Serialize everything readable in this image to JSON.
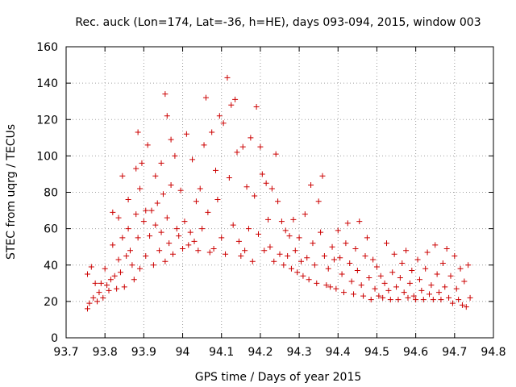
{
  "chart_data": {
    "type": "scatter",
    "title": "Rec. auck (Lon=174, Lat=-36, h=HE), days 093-094, 2015, window 003",
    "xlabel": "GPS time / Days of year 2015",
    "ylabel": "STEC from uqrg / TECUs",
    "xlim": [
      93.7,
      94.8
    ],
    "ylim": [
      0,
      160
    ],
    "xticks": [
      "93.7",
      "93.8",
      "93.9",
      "94",
      "94.1",
      "94.2",
      "94.3",
      "94.4",
      "94.5",
      "94.6",
      "94.7",
      "94.8"
    ],
    "yticks": [
      "0",
      "20",
      "40",
      "60",
      "80",
      "100",
      "120",
      "140",
      "160"
    ],
    "grid": true,
    "marker": "+",
    "color": "#cc0000",
    "series": [
      {
        "points": [
          [
            93.755,
            16
          ],
          [
            93.755,
            35
          ],
          [
            93.76,
            19
          ],
          [
            93.765,
            39
          ],
          [
            93.77,
            22
          ],
          [
            93.775,
            30
          ],
          [
            93.78,
            20
          ],
          [
            93.785,
            25
          ],
          [
            93.79,
            30
          ],
          [
            93.795,
            22
          ],
          [
            93.8,
            38
          ],
          [
            93.805,
            29
          ],
          [
            93.81,
            26
          ],
          [
            93.815,
            32
          ],
          [
            93.82,
            51
          ],
          [
            93.82,
            69
          ],
          [
            93.825,
            34
          ],
          [
            93.83,
            27
          ],
          [
            93.835,
            66
          ],
          [
            93.835,
            43
          ],
          [
            93.84,
            36
          ],
          [
            93.845,
            55
          ],
          [
            93.845,
            89
          ],
          [
            93.85,
            28
          ],
          [
            93.855,
            45
          ],
          [
            93.86,
            76
          ],
          [
            93.86,
            60
          ],
          [
            93.865,
            48
          ],
          [
            93.87,
            40
          ],
          [
            93.875,
            32
          ],
          [
            93.88,
            68
          ],
          [
            93.88,
            93
          ],
          [
            93.885,
            113
          ],
          [
            93.885,
            55
          ],
          [
            93.89,
            82
          ],
          [
            93.89,
            38
          ],
          [
            93.895,
            96
          ],
          [
            93.9,
            64
          ],
          [
            93.905,
            70
          ],
          [
            93.905,
            45
          ],
          [
            93.91,
            106
          ],
          [
            93.915,
            56
          ],
          [
            93.92,
            70
          ],
          [
            93.925,
            40
          ],
          [
            93.93,
            89
          ],
          [
            93.93,
            62
          ],
          [
            93.935,
            74
          ],
          [
            93.94,
            48
          ],
          [
            93.945,
            96
          ],
          [
            93.945,
            58
          ],
          [
            93.95,
            79
          ],
          [
            93.955,
            134
          ],
          [
            93.955,
            42
          ],
          [
            93.96,
            122
          ],
          [
            93.96,
            66
          ],
          [
            93.965,
            52
          ],
          [
            93.97,
            84
          ],
          [
            93.97,
            109
          ],
          [
            93.975,
            46
          ],
          [
            93.98,
            100
          ],
          [
            93.985,
            60
          ],
          [
            93.99,
            56
          ],
          [
            93.995,
            81
          ],
          [
            94.0,
            49
          ],
          [
            94.005,
            64
          ],
          [
            94.01,
            112
          ],
          [
            94.015,
            51
          ],
          [
            94.02,
            58
          ],
          [
            94.025,
            98
          ],
          [
            94.03,
            53
          ],
          [
            94.035,
            75
          ],
          [
            94.04,
            48
          ],
          [
            94.045,
            82
          ],
          [
            94.05,
            60
          ],
          [
            94.055,
            106
          ],
          [
            94.06,
            132
          ],
          [
            94.065,
            69
          ],
          [
            94.07,
            47
          ],
          [
            94.075,
            113
          ],
          [
            94.08,
            49
          ],
          [
            94.085,
            92
          ],
          [
            94.09,
            76
          ],
          [
            94.095,
            122
          ],
          [
            94.1,
            55
          ],
          [
            94.105,
            118
          ],
          [
            94.11,
            46
          ],
          [
            94.115,
            143
          ],
          [
            94.12,
            88
          ],
          [
            94.125,
            128
          ],
          [
            94.13,
            62
          ],
          [
            94.135,
            131
          ],
          [
            94.14,
            102
          ],
          [
            94.145,
            53
          ],
          [
            94.15,
            45
          ],
          [
            94.155,
            105
          ],
          [
            94.16,
            48
          ],
          [
            94.165,
            83
          ],
          [
            94.17,
            60
          ],
          [
            94.175,
            110
          ],
          [
            94.18,
            42
          ],
          [
            94.185,
            78
          ],
          [
            94.19,
            127
          ],
          [
            94.195,
            57
          ],
          [
            94.2,
            105
          ],
          [
            94.205,
            90
          ],
          [
            94.21,
            48
          ],
          [
            94.215,
            85
          ],
          [
            94.22,
            65
          ],
          [
            94.225,
            50
          ],
          [
            94.23,
            82
          ],
          [
            94.235,
            42
          ],
          [
            94.24,
            101
          ],
          [
            94.245,
            75
          ],
          [
            94.25,
            46
          ],
          [
            94.255,
            64
          ],
          [
            94.26,
            40
          ],
          [
            94.265,
            59
          ],
          [
            94.27,
            45
          ],
          [
            94.275,
            56
          ],
          [
            94.28,
            38
          ],
          [
            94.285,
            65
          ],
          [
            94.29,
            48
          ],
          [
            94.295,
            36
          ],
          [
            94.3,
            55
          ],
          [
            94.305,
            42
          ],
          [
            94.31,
            34
          ],
          [
            94.315,
            68
          ],
          [
            94.32,
            44
          ],
          [
            94.325,
            32
          ],
          [
            94.33,
            84
          ],
          [
            94.335,
            52
          ],
          [
            94.34,
            40
          ],
          [
            94.345,
            30
          ],
          [
            94.35,
            75
          ],
          [
            94.355,
            58
          ],
          [
            94.36,
            89
          ],
          [
            94.365,
            45
          ],
          [
            94.37,
            29
          ],
          [
            94.375,
            38
          ],
          [
            94.38,
            28
          ],
          [
            94.385,
            50
          ],
          [
            94.39,
            43
          ],
          [
            94.395,
            27
          ],
          [
            94.4,
            59
          ],
          [
            94.405,
            44
          ],
          [
            94.41,
            35
          ],
          [
            94.415,
            25
          ],
          [
            94.42,
            52
          ],
          [
            94.425,
            63
          ],
          [
            94.43,
            41
          ],
          [
            94.435,
            31
          ],
          [
            94.44,
            24
          ],
          [
            94.445,
            49
          ],
          [
            94.45,
            37
          ],
          [
            94.455,
            64
          ],
          [
            94.46,
            29
          ],
          [
            94.465,
            23
          ],
          [
            94.47,
            45
          ],
          [
            94.475,
            55
          ],
          [
            94.48,
            33
          ],
          [
            94.485,
            21
          ],
          [
            94.49,
            43
          ],
          [
            94.495,
            27
          ],
          [
            94.5,
            39
          ],
          [
            94.505,
            23
          ],
          [
            94.51,
            34
          ],
          [
            94.515,
            22
          ],
          [
            94.52,
            30
          ],
          [
            94.525,
            52
          ],
          [
            94.53,
            26
          ],
          [
            94.535,
            21
          ],
          [
            94.54,
            36
          ],
          [
            94.545,
            46
          ],
          [
            94.55,
            28
          ],
          [
            94.555,
            21
          ],
          [
            94.56,
            33
          ],
          [
            94.565,
            41
          ],
          [
            94.57,
            25
          ],
          [
            94.575,
            48
          ],
          [
            94.58,
            22
          ],
          [
            94.585,
            30
          ],
          [
            94.59,
            37
          ],
          [
            94.595,
            23
          ],
          [
            94.6,
            21
          ],
          [
            94.605,
            43
          ],
          [
            94.61,
            32
          ],
          [
            94.615,
            26
          ],
          [
            94.62,
            21
          ],
          [
            94.625,
            38
          ],
          [
            94.63,
            47
          ],
          [
            94.635,
            24
          ],
          [
            94.64,
            29
          ],
          [
            94.645,
            21
          ],
          [
            94.65,
            51
          ],
          [
            94.655,
            35
          ],
          [
            94.66,
            25
          ],
          [
            94.665,
            21
          ],
          [
            94.67,
            41
          ],
          [
            94.675,
            28
          ],
          [
            94.68,
            49
          ],
          [
            94.685,
            22
          ],
          [
            94.69,
            34
          ],
          [
            94.695,
            19
          ],
          [
            94.7,
            45
          ],
          [
            94.705,
            27
          ],
          [
            94.71,
            21
          ],
          [
            94.715,
            38
          ],
          [
            94.72,
            18
          ],
          [
            94.725,
            31
          ],
          [
            94.73,
            17
          ],
          [
            94.735,
            40
          ],
          [
            94.74,
            22
          ]
        ]
      }
    ]
  }
}
